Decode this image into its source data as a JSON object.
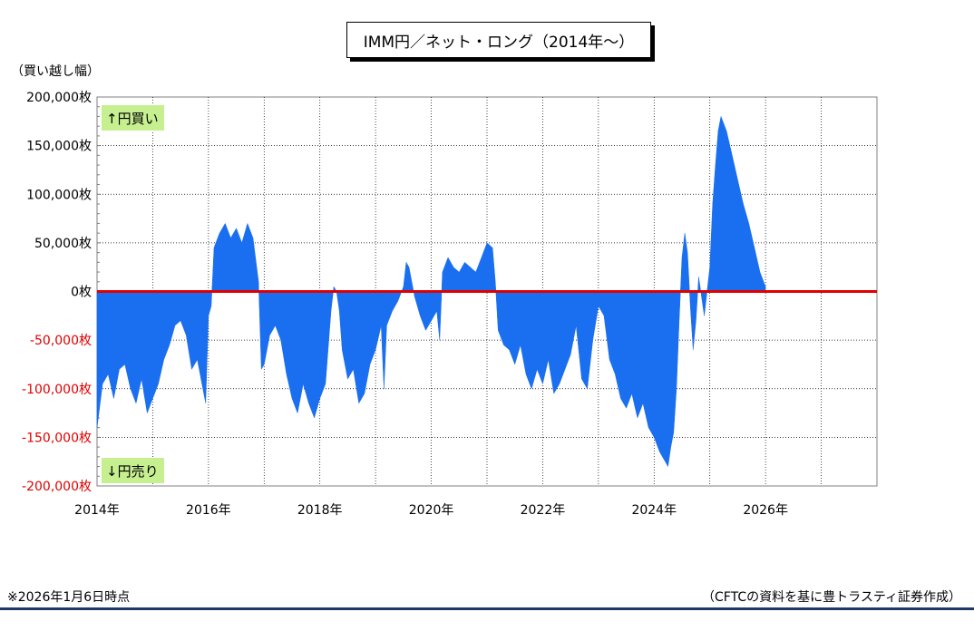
{
  "chart_data": {
    "type": "area",
    "title": "IMM円／ネット・ロング（2014年～）",
    "ylabel": "（買い越し幅）",
    "ylim": [
      -200000,
      200000
    ],
    "xlim": [
      2014.0,
      2028.0
    ],
    "y_ticks": [
      {
        "value": 200000,
        "label": "200,000枚",
        "color": "#000000"
      },
      {
        "value": 150000,
        "label": "150,000枚",
        "color": "#000000"
      },
      {
        "value": 100000,
        "label": "100,000枚",
        "color": "#000000"
      },
      {
        "value": 50000,
        "label": "50,000枚",
        "color": "#000000"
      },
      {
        "value": 0,
        "label": "0枚",
        "color": "#000000"
      },
      {
        "value": -50000,
        "label": "-50,000枚",
        "color": "#e00000"
      },
      {
        "value": -100000,
        "label": "-100,000枚",
        "color": "#e00000"
      },
      {
        "value": -150000,
        "label": "-150,000枚",
        "color": "#e00000"
      },
      {
        "value": -200000,
        "label": "-200,000枚",
        "color": "#e00000"
      }
    ],
    "x_ticks": [
      {
        "value": 2014,
        "label": "2014年"
      },
      {
        "value": 2016,
        "label": "2016年"
      },
      {
        "value": 2018,
        "label": "2018年"
      },
      {
        "value": 2020,
        "label": "2020年"
      },
      {
        "value": 2022,
        "label": "2022年"
      },
      {
        "value": 2024,
        "label": "2024年"
      },
      {
        "value": 2026,
        "label": "2026年"
      }
    ],
    "x_gridlines": [
      2015,
      2016,
      2017,
      2018,
      2019,
      2020,
      2021,
      2022,
      2023,
      2024,
      2025,
      2026,
      2027
    ],
    "grid": true,
    "series": [
      {
        "name": "",
        "color": "#1a6ff0",
        "points": [
          [
            2014.0,
            -140000
          ],
          [
            2014.1,
            -95000
          ],
          [
            2014.2,
            -85000
          ],
          [
            2014.3,
            -110000
          ],
          [
            2014.4,
            -80000
          ],
          [
            2014.5,
            -75000
          ],
          [
            2014.6,
            -100000
          ],
          [
            2014.7,
            -115000
          ],
          [
            2014.8,
            -90000
          ],
          [
            2014.9,
            -125000
          ],
          [
            2015.0,
            -110000
          ],
          [
            2015.1,
            -95000
          ],
          [
            2015.2,
            -70000
          ],
          [
            2015.3,
            -55000
          ],
          [
            2015.4,
            -35000
          ],
          [
            2015.5,
            -30000
          ],
          [
            2015.6,
            -45000
          ],
          [
            2015.7,
            -80000
          ],
          [
            2015.8,
            -70000
          ],
          [
            2015.9,
            -100000
          ],
          [
            2015.95,
            -115000
          ],
          [
            2016.0,
            -25000
          ],
          [
            2016.05,
            -15000
          ],
          [
            2016.1,
            45000
          ],
          [
            2016.2,
            60000
          ],
          [
            2016.3,
            70000
          ],
          [
            2016.4,
            55000
          ],
          [
            2016.5,
            65000
          ],
          [
            2016.6,
            50000
          ],
          [
            2016.7,
            70000
          ],
          [
            2016.8,
            55000
          ],
          [
            2016.9,
            10000
          ],
          [
            2016.95,
            -80000
          ],
          [
            2017.0,
            -75000
          ],
          [
            2017.1,
            -45000
          ],
          [
            2017.2,
            -35000
          ],
          [
            2017.3,
            -50000
          ],
          [
            2017.4,
            -85000
          ],
          [
            2017.5,
            -110000
          ],
          [
            2017.6,
            -125000
          ],
          [
            2017.7,
            -95000
          ],
          [
            2017.8,
            -115000
          ],
          [
            2017.9,
            -130000
          ],
          [
            2018.0,
            -110000
          ],
          [
            2018.1,
            -95000
          ],
          [
            2018.2,
            -20000
          ],
          [
            2018.25,
            5000
          ],
          [
            2018.3,
            0
          ],
          [
            2018.35,
            -20000
          ],
          [
            2018.4,
            -60000
          ],
          [
            2018.5,
            -90000
          ],
          [
            2018.6,
            -80000
          ],
          [
            2018.7,
            -115000
          ],
          [
            2018.8,
            -105000
          ],
          [
            2018.9,
            -75000
          ],
          [
            2019.0,
            -60000
          ],
          [
            2019.1,
            -35000
          ],
          [
            2019.15,
            -100000
          ],
          [
            2019.2,
            -35000
          ],
          [
            2019.3,
            -20000
          ],
          [
            2019.4,
            -10000
          ],
          [
            2019.5,
            5000
          ],
          [
            2019.55,
            30000
          ],
          [
            2019.6,
            25000
          ],
          [
            2019.7,
            -5000
          ],
          [
            2019.8,
            -25000
          ],
          [
            2019.9,
            -40000
          ],
          [
            2020.0,
            -30000
          ],
          [
            2020.1,
            -20000
          ],
          [
            2020.15,
            -50000
          ],
          [
            2020.2,
            20000
          ],
          [
            2020.3,
            35000
          ],
          [
            2020.4,
            25000
          ],
          [
            2020.5,
            20000
          ],
          [
            2020.6,
            30000
          ],
          [
            2020.7,
            25000
          ],
          [
            2020.8,
            20000
          ],
          [
            2020.9,
            35000
          ],
          [
            2021.0,
            50000
          ],
          [
            2021.1,
            45000
          ],
          [
            2021.15,
            10000
          ],
          [
            2021.2,
            -40000
          ],
          [
            2021.3,
            -55000
          ],
          [
            2021.4,
            -60000
          ],
          [
            2021.5,
            -75000
          ],
          [
            2021.6,
            -55000
          ],
          [
            2021.7,
            -85000
          ],
          [
            2021.8,
            -100000
          ],
          [
            2021.9,
            -80000
          ],
          [
            2022.0,
            -95000
          ],
          [
            2022.1,
            -70000
          ],
          [
            2022.2,
            -105000
          ],
          [
            2022.3,
            -95000
          ],
          [
            2022.4,
            -80000
          ],
          [
            2022.5,
            -65000
          ],
          [
            2022.6,
            -35000
          ],
          [
            2022.7,
            -90000
          ],
          [
            2022.8,
            -100000
          ],
          [
            2022.9,
            -50000
          ],
          [
            2023.0,
            -15000
          ],
          [
            2023.1,
            -25000
          ],
          [
            2023.2,
            -70000
          ],
          [
            2023.3,
            -85000
          ],
          [
            2023.4,
            -110000
          ],
          [
            2023.5,
            -120000
          ],
          [
            2023.6,
            -105000
          ],
          [
            2023.7,
            -130000
          ],
          [
            2023.8,
            -115000
          ],
          [
            2023.9,
            -140000
          ],
          [
            2024.0,
            -150000
          ],
          [
            2024.1,
            -165000
          ],
          [
            2024.2,
            -175000
          ],
          [
            2024.25,
            -180000
          ],
          [
            2024.3,
            -160000
          ],
          [
            2024.35,
            -145000
          ],
          [
            2024.4,
            -100000
          ],
          [
            2024.45,
            -30000
          ],
          [
            2024.5,
            35000
          ],
          [
            2024.55,
            60000
          ],
          [
            2024.6,
            40000
          ],
          [
            2024.65,
            -15000
          ],
          [
            2024.7,
            -60000
          ],
          [
            2024.75,
            -30000
          ],
          [
            2024.8,
            15000
          ],
          [
            2024.9,
            -25000
          ],
          [
            2025.0,
            25000
          ],
          [
            2025.05,
            90000
          ],
          [
            2025.1,
            130000
          ],
          [
            2025.15,
            165000
          ],
          [
            2025.2,
            180000
          ],
          [
            2025.3,
            165000
          ],
          [
            2025.4,
            140000
          ],
          [
            2025.5,
            115000
          ],
          [
            2025.6,
            90000
          ],
          [
            2025.7,
            70000
          ],
          [
            2025.8,
            45000
          ],
          [
            2025.9,
            20000
          ],
          [
            2026.0,
            5000
          ]
        ]
      }
    ],
    "zero_line_color": "#e00000",
    "annotations": [
      {
        "text": "↑円買い",
        "position": "top-left"
      },
      {
        "text": "↓円売り",
        "position": "bottom-left"
      }
    ]
  },
  "footnote_left": "※2026年1月6日時点",
  "footnote_right": "（CFTCの資料を基に豊トラスティ証券作成）"
}
